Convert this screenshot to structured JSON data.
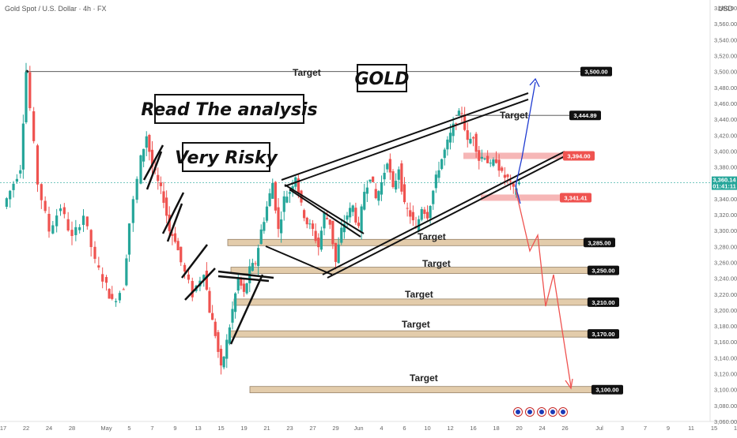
{
  "header": {
    "symbol": "Gold Spot / U.S. Dollar · 4h · FX",
    "currency": "USD"
  },
  "colors": {
    "up": "#26a69a",
    "down": "#ef5350",
    "accent": "#1f3bd1",
    "zone": "#e0c7a3",
    "zone_red": "#f5a9a9",
    "tag_dark": "#111111",
    "tag_red": "#ef5350",
    "tag_blue": "#2962ff"
  },
  "text_boxes": {
    "gold": "GOLD",
    "read": "Read The analysis",
    "risky": "Very Risky"
  },
  "chart_data": {
    "type": "candlestick",
    "ylim": [
      3060,
      3590
    ],
    "y_ticks": [
      3060,
      3080,
      3100,
      3120,
      3140,
      3160,
      3180,
      3200,
      3220,
      3240,
      3260,
      3280,
      3300,
      3320,
      3340,
      3360,
      3380,
      3400,
      3420,
      3440,
      3460,
      3480,
      3500,
      3520,
      3540,
      3560,
      3580
    ],
    "y_tick_labels": [
      "3,060.00",
      "3,080.00",
      "3,100.00",
      "3,120.00",
      "3,140.00",
      "3,160.00",
      "3,180.00",
      "3,200.00",
      "3,220.00",
      "3,240.00",
      "3,260.00",
      "3,280.00",
      "3,300.00",
      "3,320.00",
      "3,340.00",
      "3,360.00",
      "3,380.00",
      "3,400.00",
      "3,420.00",
      "3,440.00",
      "3,460.00",
      "3,480.00",
      "3,500.00",
      "3,520.00",
      "3,540.00",
      "3,560.00",
      "3,580.00"
    ],
    "x_ticks": [
      {
        "label": "17",
        "pos": 0
      },
      {
        "label": "22",
        "pos": 4
      },
      {
        "label": "24",
        "pos": 8
      },
      {
        "label": "28",
        "pos": 12
      },
      {
        "label": "May",
        "pos": 18
      },
      {
        "label": "5",
        "pos": 22
      },
      {
        "label": "7",
        "pos": 26
      },
      {
        "label": "9",
        "pos": 30
      },
      {
        "label": "13",
        "pos": 34
      },
      {
        "label": "15",
        "pos": 38
      },
      {
        "label": "19",
        "pos": 42
      },
      {
        "label": "21",
        "pos": 46
      },
      {
        "label": "23",
        "pos": 50
      },
      {
        "label": "27",
        "pos": 54
      },
      {
        "label": "29",
        "pos": 58
      },
      {
        "label": "Jun",
        "pos": 62
      },
      {
        "label": "4",
        "pos": 66
      },
      {
        "label": "6",
        "pos": 70
      },
      {
        "label": "10",
        "pos": 74
      },
      {
        "label": "12",
        "pos": 78
      },
      {
        "label": "16",
        "pos": 82
      },
      {
        "label": "18",
        "pos": 86
      },
      {
        "label": "20",
        "pos": 90
      },
      {
        "label": "24",
        "pos": 94
      },
      {
        "label": "26",
        "pos": 98
      },
      {
        "label": "Jul",
        "pos": 104
      },
      {
        "label": "3",
        "pos": 108
      },
      {
        "label": "7",
        "pos": 112
      },
      {
        "label": "9",
        "pos": 116
      },
      {
        "label": "11",
        "pos": 120
      },
      {
        "label": "15",
        "pos": 124
      },
      {
        "label": "17",
        "pos": 128
      }
    ],
    "price_path": [
      [
        0,
        3330
      ],
      [
        3,
        3380
      ],
      [
        4,
        3500
      ],
      [
        6,
        3360
      ],
      [
        8,
        3300
      ],
      [
        10,
        3330
      ],
      [
        12,
        3290
      ],
      [
        14,
        3320
      ],
      [
        16,
        3260
      ],
      [
        18,
        3230
      ],
      [
        19,
        3210
      ],
      [
        21,
        3230
      ],
      [
        22,
        3310
      ],
      [
        24,
        3390
      ],
      [
        25,
        3420
      ],
      [
        26,
        3380
      ],
      [
        27,
        3360
      ],
      [
        28,
        3340
      ],
      [
        29,
        3300
      ],
      [
        30,
        3290
      ],
      [
        31,
        3260
      ],
      [
        33,
        3220
      ],
      [
        35,
        3250
      ],
      [
        36,
        3200
      ],
      [
        37,
        3170
      ],
      [
        38,
        3125
      ],
      [
        39,
        3160
      ],
      [
        40,
        3200
      ],
      [
        41,
        3240
      ],
      [
        42,
        3220
      ],
      [
        43,
        3250
      ],
      [
        44,
        3260
      ],
      [
        45,
        3300
      ],
      [
        46,
        3330
      ],
      [
        47,
        3360
      ],
      [
        48,
        3300
      ],
      [
        49,
        3340
      ],
      [
        50,
        3350
      ],
      [
        51,
        3370
      ],
      [
        52,
        3330
      ],
      [
        53,
        3310
      ],
      [
        54,
        3300
      ],
      [
        55,
        3280
      ],
      [
        56,
        3320
      ],
      [
        57,
        3310
      ],
      [
        58,
        3260
      ],
      [
        59,
        3300
      ],
      [
        60,
        3320
      ],
      [
        61,
        3330
      ],
      [
        62,
        3300
      ],
      [
        63,
        3350
      ],
      [
        64,
        3370
      ],
      [
        65,
        3340
      ],
      [
        66,
        3360
      ],
      [
        67,
        3390
      ],
      [
        68,
        3350
      ],
      [
        69,
        3380
      ],
      [
        70,
        3330
      ],
      [
        71,
        3320
      ],
      [
        72,
        3300
      ],
      [
        73,
        3330
      ],
      [
        74,
        3320
      ],
      [
        75,
        3350
      ],
      [
        76,
        3380
      ],
      [
        77,
        3400
      ],
      [
        78,
        3420
      ],
      [
        79,
        3440
      ],
      [
        80,
        3450
      ],
      [
        81,
        3410
      ],
      [
        82,
        3420
      ],
      [
        83,
        3390
      ],
      [
        84,
        3395
      ],
      [
        85,
        3380
      ],
      [
        86,
        3390
      ],
      [
        87,
        3370
      ],
      [
        88,
        3365
      ],
      [
        89,
        3350
      ],
      [
        90,
        3360
      ]
    ],
    "last_price": 3360.14,
    "countdown": "01:41:11",
    "markers": [
      {
        "price": 3500,
        "label": "3,500.00"
      },
      {
        "price": 3444.89,
        "label": "3,444.89"
      },
      {
        "price": 3394,
        "label": "3,394.00"
      },
      {
        "price": 3341.41,
        "label": "3,341.41"
      }
    ],
    "targets": [
      {
        "label": "Target",
        "price": 3500,
        "tag": "3,500.00"
      },
      {
        "label": "Target",
        "price": 3444.89,
        "tag": "3,444.89"
      },
      {
        "label": "Target",
        "price": 3285,
        "tag": "3,285.00"
      },
      {
        "label": "Target",
        "price": 3250,
        "tag": "3,250.00"
      },
      {
        "label": "Target",
        "price": 3210,
        "tag": "3,210.00"
      },
      {
        "label": "Target",
        "price": 3170,
        "tag": "3,170.00"
      },
      {
        "label": "Target",
        "price": 3100,
        "tag": "3,100.00"
      }
    ]
  }
}
